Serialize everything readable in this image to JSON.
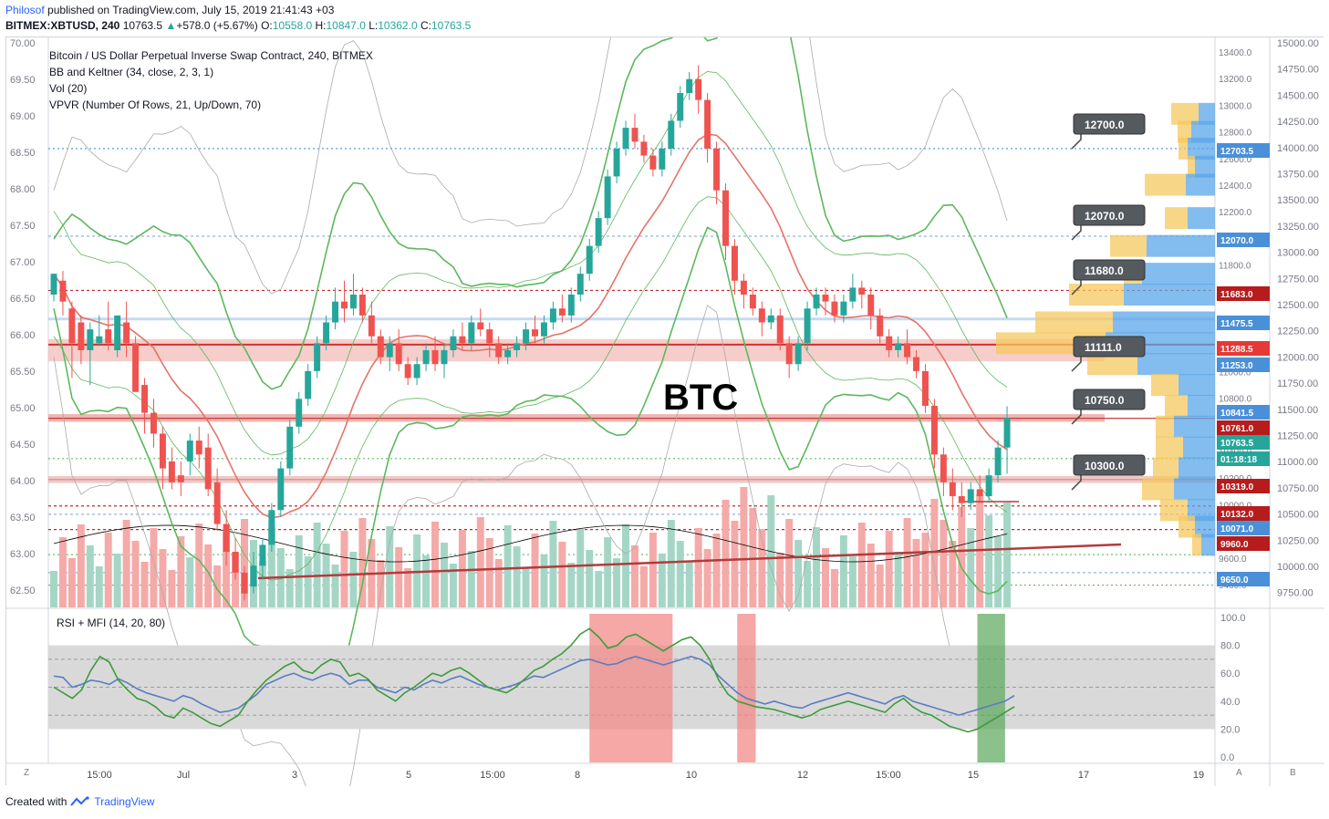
{
  "header": {
    "author": "Philosof",
    "published": "published on TradingView.com, July 15, 2019 21:41:43 +03",
    "symbol": "BITMEX:XBTUSD, 240",
    "price": "10763.5",
    "change": "+578.0 (+5.67%)",
    "ohlc": {
      "o_label": "O:",
      "o": "10558.0",
      "h_label": "H:",
      "h": "10847.0",
      "l_label": "L:",
      "l": "10362.0",
      "c_label": "C:",
      "c": "10763.5"
    }
  },
  "legend": {
    "title": "Bitcoin / US Dollar Perpetual Inverse Swap Contract, 240, BITMEX",
    "ind1": "BB and Keltner (34, close, 2, 3, 1)",
    "ind2": "Vol (20)",
    "ind3": "VPVR (Number Of Rows, 21, Up/Down, 70)",
    "rsi": "RSI + MFI (14, 20, 80)"
  },
  "watermark": "BTC",
  "footer": {
    "created": "Created with",
    "brand": "TradingView"
  },
  "corner": {
    "left": "Z",
    "a": "A",
    "b": "B"
  },
  "colors": {
    "up": "#26a69a",
    "down": "#ef5350",
    "accent": "#2962ff",
    "bb": "#4caf50",
    "mid": "#e57368"
  },
  "chart_data": {
    "type": "candlestick",
    "xaxis_ticks": [
      "15:00",
      "Jul",
      "3",
      "5",
      "15:00",
      "8",
      "10",
      "12",
      "15:00",
      "15",
      "17",
      "19"
    ],
    "left_axis": {
      "ticks": [
        "70.00",
        "69.50",
        "69.00",
        "68.50",
        "68.00",
        "67.50",
        "67.00",
        "66.50",
        "66.00",
        "65.50",
        "65.00",
        "64.50",
        "64.00",
        "63.50",
        "63.00",
        "62.50"
      ]
    },
    "right_axis_inner": {
      "ticks": [
        "13400.0",
        "13200.0",
        "13000.0",
        "12800.0",
        "12600.0",
        "12400.0",
        "12200.0",
        "12000.0",
        "11800.0",
        "11600.0",
        "11400.0",
        "11200.0",
        "11000.0",
        "10800.0",
        "10600.0",
        "10400.0",
        "10200.0",
        "10000.0",
        "9800.0",
        "9600.0",
        "9400.0"
      ]
    },
    "right_axis_outer": {
      "ticks": [
        "15000.00",
        "14750.00",
        "14500.00",
        "14250.00",
        "14000.00",
        "13750.00",
        "13500.00",
        "13250.00",
        "13000.00",
        "12750.00",
        "12500.00",
        "12250.00",
        "12000.00",
        "11750.00",
        "11500.00",
        "11250.00",
        "11000.00",
        "10750.00",
        "10500.00",
        "10250.00",
        "10000.00",
        "9750.00"
      ]
    },
    "price_labels": [
      {
        "value": "12703.5",
        "color": "#4a90d9"
      },
      {
        "value": "12070.0",
        "color": "#4a90d9"
      },
      {
        "value": "11683.0",
        "color": "#b71c1c"
      },
      {
        "value": "11475.5",
        "color": "#4a90d9"
      },
      {
        "value": "11288.5",
        "color": "#e53935"
      },
      {
        "value": "11253.0",
        "color": "#4a90d9"
      },
      {
        "value": "10841.5",
        "color": "#4a90d9"
      },
      {
        "value": "10761.0",
        "color": "#b71c1c"
      },
      {
        "value": "10763.5",
        "color": "#26a69a"
      },
      {
        "value": "01:18:18",
        "color": "#26a69a"
      },
      {
        "value": "10319.0",
        "color": "#b71c1c"
      },
      {
        "value": "10132.0",
        "color": "#b71c1c"
      },
      {
        "value": "10071.0",
        "color": "#4a90d9"
      },
      {
        "value": "9960.0",
        "color": "#b71c1c"
      },
      {
        "value": "9650.0",
        "color": "#4a90d9"
      }
    ],
    "callouts": [
      "12700.0",
      "12070.0",
      "11680.0",
      "11111.0",
      "10750.0",
      "10300.0"
    ],
    "rsi_axis": {
      "ticks": [
        "100.0",
        "80.0",
        "60.0",
        "40.0",
        "20.0",
        "0.0"
      ]
    },
    "levels": [
      12700,
      12070,
      11680,
      11475,
      11290,
      10760,
      10320,
      10130,
      10070,
      9960,
      9650
    ],
    "candles": [
      [
        11650,
        11800,
        11800,
        11600
      ],
      [
        11750,
        11600,
        11820,
        11500
      ],
      [
        11550,
        11300,
        11600,
        11050
      ],
      [
        11450,
        11250,
        11500,
        11150
      ],
      [
        11250,
        11400,
        11450,
        11000
      ],
      [
        11300,
        11350,
        11500,
        11280
      ],
      [
        11400,
        11300,
        11600,
        11250
      ],
      [
        11250,
        11500,
        11500,
        11200
      ],
      [
        11450,
        11300,
        11600,
        11200
      ],
      [
        11300,
        10950,
        11350,
        10950
      ],
      [
        11000,
        10800,
        11050,
        10650
      ],
      [
        10800,
        10650,
        10900,
        10550
      ],
      [
        10650,
        10400,
        10700,
        10250
      ],
      [
        10450,
        10300,
        10550,
        10250
      ],
      [
        10350,
        10300,
        10450,
        10200
      ],
      [
        10450,
        10600,
        10650,
        10350
      ],
      [
        10600,
        10500,
        10700,
        10400
      ],
      [
        10550,
        10250,
        10650,
        10200
      ],
      [
        10300,
        10000,
        10400,
        9950
      ],
      [
        10000,
        9800,
        10100,
        9700
      ],
      [
        9800,
        9650,
        9900,
        9600
      ],
      [
        9650,
        9500,
        9700,
        9450
      ],
      [
        9550,
        9700,
        9800,
        9500
      ],
      [
        9700,
        9850,
        9900,
        9600
      ],
      [
        9850,
        10100,
        10150,
        9800
      ],
      [
        10100,
        10400,
        10450,
        10050
      ],
      [
        10400,
        10700,
        10750,
        10350
      ],
      [
        10700,
        10900,
        10950,
        10650
      ],
      [
        10900,
        11100,
        11150,
        10850
      ],
      [
        11100,
        11300,
        11350,
        11050
      ],
      [
        11300,
        11450,
        11500,
        11250
      ],
      [
        11450,
        11600,
        11700,
        11400
      ],
      [
        11600,
        11550,
        11750,
        11450
      ],
      [
        11550,
        11650,
        11800,
        11500
      ],
      [
        11650,
        11500,
        11700,
        11450
      ],
      [
        11500,
        11350,
        11600,
        11300
      ],
      [
        11350,
        11200,
        11400,
        11150
      ],
      [
        11200,
        11300,
        11350,
        11100
      ],
      [
        11300,
        11150,
        11400,
        11100
      ],
      [
        11150,
        11050,
        11200,
        11000
      ],
      [
        11050,
        11150,
        11200,
        11000
      ],
      [
        11150,
        11250,
        11300,
        11100
      ],
      [
        11250,
        11150,
        11350,
        11100
      ],
      [
        11150,
        11250,
        11300,
        11050
      ],
      [
        11250,
        11350,
        11400,
        11200
      ],
      [
        11350,
        11300,
        11450,
        11250
      ],
      [
        11300,
        11450,
        11500,
        11250
      ],
      [
        11450,
        11400,
        11550,
        11350
      ],
      [
        11400,
        11300,
        11450,
        11200
      ],
      [
        11300,
        11200,
        11350,
        11150
      ],
      [
        11200,
        11250,
        11300,
        11150
      ],
      [
        11250,
        11300,
        11350,
        11200
      ],
      [
        11300,
        11400,
        11450,
        11250
      ],
      [
        11400,
        11350,
        11500,
        11300
      ],
      [
        11350,
        11450,
        11500,
        11300
      ],
      [
        11450,
        11550,
        11600,
        11400
      ],
      [
        11550,
        11500,
        11650,
        11450
      ],
      [
        11500,
        11650,
        11700,
        11450
      ],
      [
        11650,
        11800,
        11850,
        11600
      ],
      [
        11800,
        12000,
        12050,
        11750
      ],
      [
        12000,
        12200,
        12250,
        11950
      ],
      [
        12200,
        12500,
        12550,
        12150
      ],
      [
        12500,
        12700,
        12750,
        12450
      ],
      [
        12700,
        12850,
        12900,
        12650
      ],
      [
        12850,
        12750,
        12950,
        12700
      ],
      [
        12750,
        12650,
        12800,
        12600
      ],
      [
        12650,
        12550,
        12700,
        12500
      ],
      [
        12550,
        12700,
        12750,
        12500
      ],
      [
        12700,
        12900,
        12950,
        12650
      ],
      [
        12900,
        13100,
        13150,
        12850
      ],
      [
        13100,
        13200,
        13250,
        13050
      ],
      [
        13200,
        13050,
        13300,
        12950
      ],
      [
        13050,
        12700,
        13100,
        12600
      ],
      [
        12700,
        12400,
        12750,
        12300
      ],
      [
        12400,
        12000,
        12450,
        11900
      ],
      [
        12000,
        11750,
        12050,
        11650
      ],
      [
        11750,
        11650,
        11800,
        11550
      ],
      [
        11650,
        11550,
        11700,
        11500
      ],
      [
        11550,
        11450,
        11600,
        11350
      ],
      [
        11450,
        11500,
        11550,
        11400
      ],
      [
        11500,
        11300,
        11550,
        11250
      ],
      [
        11300,
        11150,
        11350,
        11050
      ],
      [
        11150,
        11300,
        11350,
        11100
      ],
      [
        11300,
        11550,
        11600,
        11250
      ],
      [
        11550,
        11650,
        11700,
        11500
      ],
      [
        11650,
        11600,
        11700,
        11500
      ],
      [
        11600,
        11500,
        11650,
        11450
      ],
      [
        11500,
        11600,
        11650,
        11450
      ],
      [
        11600,
        11700,
        11800,
        11550
      ],
      [
        11700,
        11650,
        11750,
        11550
      ],
      [
        11650,
        11500,
        11700,
        11400
      ],
      [
        11500,
        11350,
        11550,
        11300
      ],
      [
        11350,
        11250,
        11400,
        11200
      ],
      [
        11250,
        11300,
        11350,
        11200
      ],
      [
        11300,
        11200,
        11400,
        11150
      ],
      [
        11200,
        11100,
        11250,
        11050
      ],
      [
        11100,
        10850,
        11150,
        10800
      ],
      [
        10850,
        10500,
        10900,
        10400
      ],
      [
        10500,
        10300,
        10550,
        10200
      ],
      [
        10300,
        10200,
        10400,
        10100
      ],
      [
        10200,
        10150,
        10300,
        10050
      ],
      [
        10150,
        10250,
        10300,
        10100
      ],
      [
        10250,
        10200,
        10350,
        10150
      ],
      [
        10200,
        10350,
        10400,
        10150
      ],
      [
        10350,
        10550,
        10600,
        10300
      ],
      [
        10550,
        10763,
        10847,
        10362
      ]
    ],
    "rsi_series": {
      "rsi_color": "#5b7cc2",
      "mfi_color": "#3d9b3d",
      "rsi": [
        58,
        57,
        50,
        52,
        55,
        54,
        52,
        56,
        53,
        49,
        46,
        44,
        42,
        40,
        44,
        42,
        38,
        35,
        32,
        33,
        35,
        40,
        45,
        52,
        55,
        58,
        60,
        57,
        55,
        58,
        60,
        58,
        52,
        55,
        55,
        50,
        48,
        46,
        50,
        48,
        52,
        55,
        53,
        56,
        58,
        55,
        52,
        50,
        48,
        50,
        52,
        55,
        58,
        57,
        60,
        63,
        66,
        69,
        70,
        68,
        66,
        67,
        70,
        72,
        70,
        68,
        66,
        68,
        70,
        72,
        70,
        66,
        58,
        52,
        46,
        42,
        40,
        38,
        40,
        38,
        36,
        35,
        38,
        40,
        42,
        44,
        46,
        44,
        42,
        40,
        38,
        42,
        44,
        40,
        38,
        36,
        34,
        32,
        30,
        32,
        34,
        36,
        38,
        40,
        44
      ],
      "mfi": [
        50,
        46,
        42,
        48,
        62,
        72,
        68,
        55,
        48,
        42,
        40,
        36,
        30,
        28,
        35,
        32,
        28,
        24,
        22,
        26,
        30,
        40,
        48,
        55,
        60,
        65,
        68,
        62,
        60,
        66,
        70,
        68,
        58,
        60,
        56,
        48,
        44,
        40,
        46,
        50,
        55,
        60,
        58,
        62,
        64,
        60,
        55,
        50,
        48,
        46,
        50,
        56,
        62,
        65,
        70,
        74,
        80,
        88,
        92,
        86,
        78,
        80,
        86,
        88,
        84,
        80,
        76,
        80,
        84,
        86,
        80,
        70,
        55,
        45,
        40,
        38,
        36,
        35,
        34,
        32,
        30,
        28,
        30,
        34,
        36,
        38,
        40,
        38,
        36,
        34,
        32,
        38,
        42,
        36,
        32,
        30,
        26,
        22,
        20,
        18,
        20,
        24,
        28,
        32,
        36
      ],
      "overbought_zones": [
        [
          58,
          67
        ],
        [
          74,
          76
        ]
      ],
      "oversold_zones": [
        [
          100,
          103
        ]
      ]
    }
  }
}
